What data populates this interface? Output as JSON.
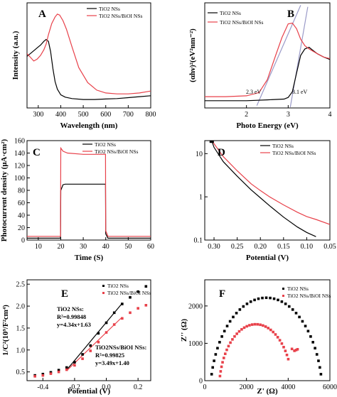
{
  "figure": {
    "panels": [
      {
        "letter": "A",
        "xlabel": "Wavelength (nm)",
        "ylabel": "Intensity (a.u.)",
        "legend": [
          "TiO2 NSs",
          "TiO2 NSs/BiOI NSs"
        ]
      },
      {
        "letter": "B",
        "xlabel": "Photo Energy (eV)",
        "ylabel": "(αhν)²(eV²nm⁻²)",
        "legend": [
          "TiO2 NSs",
          "TiO2 NSs/BiOI NSs"
        ],
        "annotations": [
          "2.3 eV",
          "3.1 eV"
        ]
      },
      {
        "letter": "C",
        "xlabel": "Time (S)",
        "ylabel": "Photocurrent density (μA·cm²)",
        "legend": [
          "TiO2 NSs",
          "TiO2 NSs/BiOI NSs"
        ]
      },
      {
        "letter": "D",
        "xlabel": "Potential (V)",
        "legend": [
          "TiO2 NSs",
          "TiO2 NSs/BiOI NSs"
        ]
      },
      {
        "letter": "E",
        "xlabel": "Potential (V)",
        "ylabel": "1/C²(10⁹/F²cm⁴)",
        "legend": [
          "TiO2 NSs",
          "TiO2 NSs/BiOI NSs"
        ],
        "annotations": [
          "TiO2 NSs:",
          "R²=0.99848",
          "y=4.34x+1.63",
          "TiO2NSs/BiOI NSs:",
          "R²=0.99825",
          "y=3.49x+1.40"
        ]
      },
      {
        "letter": "F",
        "xlabel": "Z' (Ω)",
        "ylabel": "Z'' (Ω)",
        "legend": [
          "TiO2 NSs",
          "TiO2 NSs/BiOI NSs"
        ]
      }
    ]
  },
  "colors": {
    "tio2": "#000000",
    "biOI": "#e8414a",
    "tangent": "#9a9ac8"
  },
  "chart_data": [
    {
      "type": "line",
      "panel": "A",
      "xlim": [
        250,
        800
      ],
      "xticks": [
        "300",
        "400",
        "500",
        "600",
        "700",
        "800"
      ],
      "series": [
        {
          "name": "TiO2 NSs",
          "x": [
            250,
            265,
            280,
            295,
            310,
            325,
            335,
            345,
            355,
            365,
            375,
            385,
            400,
            420,
            450,
            500,
            550,
            600,
            650,
            700,
            750,
            800
          ],
          "y": [
            0.55,
            0.58,
            0.61,
            0.64,
            0.67,
            0.71,
            0.73,
            0.71,
            0.6,
            0.42,
            0.28,
            0.2,
            0.14,
            0.115,
            0.1,
            0.09,
            0.09,
            0.095,
            0.1,
            0.11,
            0.12,
            0.13
          ]
        },
        {
          "name": "TiO2 NSs/BiOI NSs",
          "x": [
            250,
            265,
            280,
            295,
            310,
            325,
            335,
            345,
            360,
            375,
            385,
            395,
            410,
            425,
            450,
            480,
            520,
            560,
            600,
            650,
            700,
            750,
            800
          ],
          "y": [
            0.58,
            0.54,
            0.5,
            0.52,
            0.56,
            0.62,
            0.68,
            0.78,
            0.9,
            0.97,
            1.0,
            0.99,
            0.93,
            0.84,
            0.65,
            0.43,
            0.27,
            0.19,
            0.16,
            0.15,
            0.15,
            0.16,
            0.18
          ]
        }
      ]
    },
    {
      "type": "line",
      "panel": "B",
      "xlim": [
        1,
        4
      ],
      "xticks": [
        "2",
        "3",
        "4"
      ],
      "series": [
        {
          "name": "TiO2 NSs",
          "x": [
            1.0,
            1.5,
            2.0,
            2.5,
            2.9,
            3.0,
            3.1,
            3.2,
            3.3,
            3.4,
            3.5,
            3.6,
            3.7,
            3.85,
            4.0
          ],
          "y": [
            0.04,
            0.04,
            0.04,
            0.05,
            0.06,
            0.08,
            0.15,
            0.38,
            0.6,
            0.68,
            0.7,
            0.66,
            0.62,
            0.58,
            0.55
          ]
        },
        {
          "name": "TiO2 NSs/BiOI NSs",
          "x": [
            1.0,
            1.5,
            2.0,
            2.3,
            2.5,
            2.7,
            2.85,
            3.0,
            3.1,
            3.2,
            3.3,
            3.4,
            3.5,
            3.7,
            3.85,
            4.0
          ],
          "y": [
            0.09,
            0.09,
            0.1,
            0.14,
            0.3,
            0.6,
            0.82,
            0.99,
            1.0,
            0.93,
            0.8,
            0.72,
            0.68,
            0.62,
            0.58,
            0.56
          ]
        }
      ],
      "tangents": [
        {
          "x": [
            2.25,
            3.3
          ],
          "y": [
            -0.02,
            1.22
          ]
        },
        {
          "x": [
            3.05,
            3.47
          ],
          "y": [
            -0.04,
            1.2
          ]
        }
      ]
    },
    {
      "type": "line",
      "panel": "C",
      "xlim": [
        5,
        60
      ],
      "ylim": [
        0,
        160
      ],
      "xticks": [
        "10",
        "20",
        "30",
        "40",
        "50",
        "60"
      ],
      "yticks": [
        "0",
        "20",
        "40",
        "60",
        "80",
        "100",
        "120",
        "140",
        "160"
      ],
      "series": [
        {
          "name": "TiO2 NSs",
          "x": [
            5,
            19.9,
            20,
            21,
            22,
            39.9,
            40,
            41,
            60
          ],
          "y": [
            3,
            3,
            80,
            89,
            90,
            90,
            10,
            3,
            3
          ]
        },
        {
          "name": "TiO2 NSs/BiOI NSs",
          "x": [
            5,
            19.9,
            20,
            21,
            23,
            30,
            39.9,
            40,
            41,
            60
          ],
          "y": [
            6,
            6,
            148,
            143,
            140,
            138,
            138,
            15,
            6,
            6
          ]
        }
      ]
    },
    {
      "type": "line",
      "panel": "D",
      "xlim": [
        0.32,
        0.05
      ],
      "yscale": "log",
      "ylim": [
        0.1,
        20
      ],
      "xticks": [
        "0.30",
        "0.25",
        "0.20",
        "0.15",
        "0.10",
        "0.05"
      ],
      "yticks": [
        "0.1",
        "1",
        "10"
      ],
      "series": [
        {
          "name": "TiO2 NSs",
          "x": [
            0.315,
            0.3,
            0.28,
            0.25,
            0.22,
            0.2,
            0.18,
            0.15,
            0.12,
            0.1,
            0.08
          ],
          "y": [
            40,
            14,
            6.5,
            3.0,
            1.45,
            0.95,
            0.62,
            0.34,
            0.2,
            0.15,
            0.12
          ]
        },
        {
          "name": "TiO2 NSs/BiOI NSs",
          "x": [
            0.315,
            0.3,
            0.28,
            0.25,
            0.22,
            0.2,
            0.18,
            0.15,
            0.12,
            0.1,
            0.08,
            0.05
          ],
          "y": [
            40,
            17,
            8.5,
            4.0,
            2.0,
            1.4,
            1.0,
            0.65,
            0.44,
            0.35,
            0.3,
            0.23
          ]
        }
      ]
    },
    {
      "type": "scatter",
      "panel": "E",
      "xlim": [
        -0.5,
        0.28
      ],
      "ylim": [
        0.3,
        2.6
      ],
      "xticks": [
        "-0.4",
        "-0.2",
        "0.0",
        "0.2"
      ],
      "yticks": [
        "0.5",
        "1.0",
        "1.5",
        "2.0",
        "2.5"
      ],
      "series": [
        {
          "name": "TiO2 NSs",
          "x": [
            -0.45,
            -0.4,
            -0.35,
            -0.3,
            -0.25,
            -0.2,
            -0.15,
            -0.1,
            -0.05,
            0.0,
            0.05,
            0.1,
            0.15,
            0.2,
            0.25
          ],
          "y": [
            0.42,
            0.45,
            0.49,
            0.54,
            0.6,
            0.72,
            0.9,
            1.1,
            1.38,
            1.62,
            1.85,
            2.05,
            2.2,
            2.33,
            2.45
          ]
        },
        {
          "name": "TiO2 NSs/BiOI NSs",
          "x": [
            -0.45,
            -0.4,
            -0.35,
            -0.3,
            -0.25,
            -0.2,
            -0.15,
            -0.1,
            -0.05,
            0.0,
            0.05,
            0.1,
            0.15,
            0.2,
            0.25
          ],
          "y": [
            0.4,
            0.42,
            0.46,
            0.5,
            0.55,
            0.65,
            0.8,
            0.98,
            1.18,
            1.4,
            1.58,
            1.72,
            1.85,
            1.95,
            2.02
          ]
        }
      ],
      "fits": [
        {
          "x": [
            -0.25,
            0.1
          ],
          "y": [
            0.545,
            2.064
          ]
        },
        {
          "x": [
            -0.25,
            0.1
          ],
          "y": [
            0.528,
            1.749
          ]
        }
      ]
    },
    {
      "type": "scatter",
      "panel": "F",
      "xlim": [
        0,
        6000
      ],
      "ylim": [
        0,
        2700
      ],
      "xticks": [
        "0",
        "2000",
        "4000",
        "6000"
      ],
      "yticks": [
        "0",
        "1000",
        "2000"
      ],
      "series": [
        {
          "name": "TiO2 NSs",
          "arc": {
            "center": [
              2950,
              -480
            ],
            "radius": 2700,
            "from_angle": 170,
            "to_angle": 10,
            "points": 40
          }
        },
        {
          "name": "TiO2 NSs/BiOI NSs",
          "arc": {
            "center": [
              2450,
              -250
            ],
            "radius": 1760,
            "from_angle": 172,
            "to_angle": 28,
            "points": 34
          },
          "tail": {
            "x": [
              4180,
              4300,
              4380,
              4450
            ],
            "y": [
              850,
              800,
              820,
              840
            ]
          }
        }
      ]
    }
  ]
}
